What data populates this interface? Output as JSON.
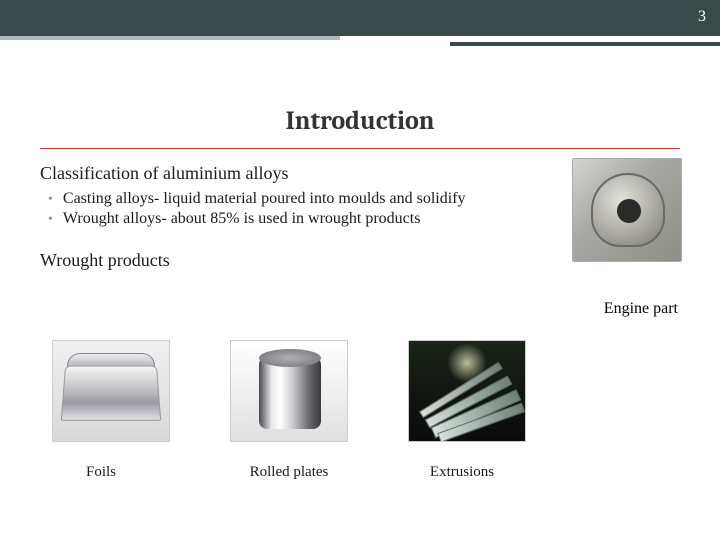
{
  "page_number": "3",
  "title": "Introduction",
  "section1_heading": "Classification of aluminium alloys",
  "bullets": [
    "Casting alloys- liquid material poured into moulds and solidify",
    "Wrought alloys- about 85% is used in wrought products"
  ],
  "section2_heading": "Wrought products",
  "engine_caption": "Engine part",
  "products": [
    {
      "label": "Foils"
    },
    {
      "label": "Rolled plates"
    },
    {
      "label": "Extrusions"
    }
  ],
  "colors": {
    "header_bg": "#3a4a4a",
    "accent_light": "#b0b8b8",
    "title_underline": "#c0392b",
    "bullet_dot": "#8a9a99",
    "text": "#1a1a1a"
  }
}
